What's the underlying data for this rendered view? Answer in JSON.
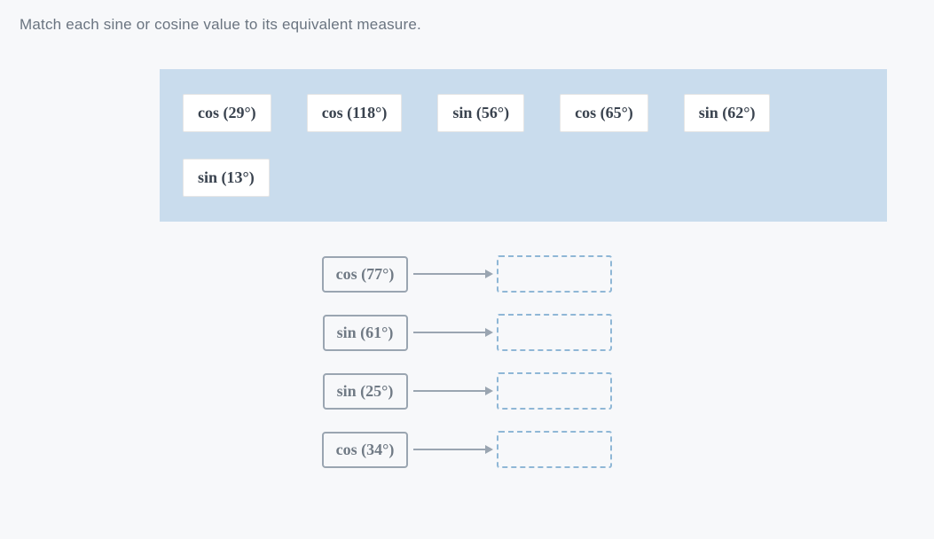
{
  "instruction": "Match each sine or cosine value to its equivalent measure.",
  "pool": {
    "row1": [
      {
        "label": "cos (29°)"
      },
      {
        "label": "cos (118°)"
      },
      {
        "label": "sin (56°)"
      },
      {
        "label": "cos (65°)"
      },
      {
        "label": "sin (62°)"
      }
    ],
    "row2": [
      {
        "label": "sin (13°)"
      }
    ]
  },
  "prompts": [
    {
      "label": "cos (77°)"
    },
    {
      "label": "sin (61°)"
    },
    {
      "label": "sin (25°)"
    },
    {
      "label": "cos (34°)"
    }
  ],
  "colors": {
    "pool_bg": "#c9dced",
    "page_bg": "#f7f8fa",
    "tile_bg": "#ffffff",
    "prompt_border": "#9aa5b1",
    "drop_border": "#8fb7d6",
    "text": "#5a6570"
  }
}
